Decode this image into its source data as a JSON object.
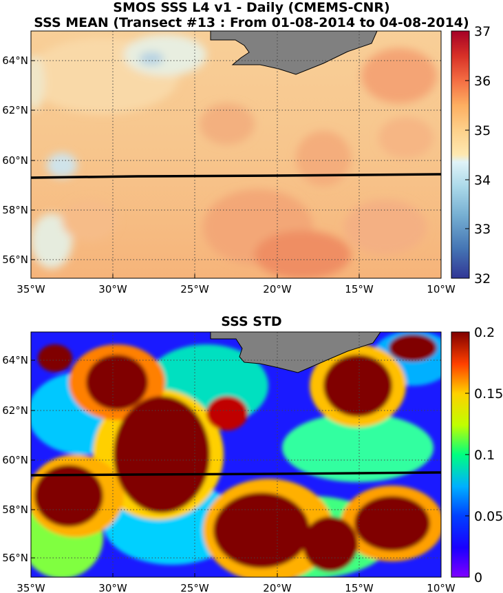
{
  "titles": {
    "line1": "SMOS SSS L4 v1 - Daily (CMEMS-CNR)",
    "line2": "SSS MEAN (Transect #13 : From 01-08-2014 to 04-08-2014)",
    "line3": "SSS STD"
  },
  "maps": {
    "lon_ticks": [
      "35°W",
      "30°W",
      "25°W",
      "20°W",
      "15°W",
      "10°W"
    ],
    "lat_ticks": [
      "56°N",
      "58°N",
      "60°N",
      "62°N",
      "64°N"
    ],
    "lon_range": [
      -35,
      -10
    ],
    "lat_range": [
      55.1,
      65
    ],
    "land_color": "#808080",
    "transect_color": "#000000"
  },
  "colorbars": {
    "mean": {
      "ticks": [
        "32",
        "33",
        "34",
        "35",
        "36",
        "37"
      ],
      "range": [
        32,
        37
      ],
      "colormap": "diverging blue-white-red",
      "colors": [
        "#313695",
        "#4575b4",
        "#74add1",
        "#abd9e9",
        "#e0f3f8",
        "#fee090",
        "#fdae61",
        "#f46d43",
        "#d73027",
        "#a50026"
      ]
    },
    "std": {
      "ticks": [
        "0",
        "0.05",
        "0.1",
        "0.15",
        "0.2"
      ],
      "range": [
        0,
        0.2
      ],
      "colormap": "jet",
      "colors": [
        "#7f00ff",
        "#0000ff",
        "#00b0ff",
        "#00ff80",
        "#c0ff00",
        "#ffd000",
        "#ff4000",
        "#800000"
      ]
    }
  }
}
